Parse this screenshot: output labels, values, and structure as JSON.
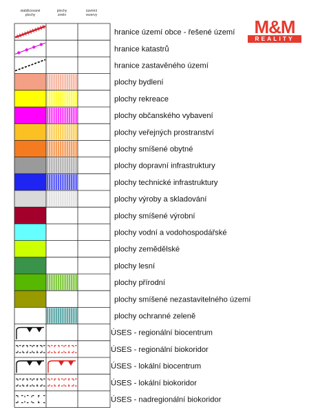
{
  "header": {
    "col1_line1": "stabilizované",
    "col1_line2": "plochy",
    "col2_line1": "plochy",
    "col2_line2": "změn",
    "col3_line1": "územní",
    "col3_line2": "rezervy"
  },
  "logo": {
    "mark": "M&M",
    "tagline": "REALITY",
    "color": "#e53a2f"
  },
  "rows": [
    {
      "label": "hranice území obce - řešené území",
      "kind": "line",
      "stable": "#d0202a",
      "change": null,
      "style": "red-hatched-line"
    },
    {
      "label": "hranice katastrů",
      "kind": "line",
      "stable": "#e020e0",
      "change": null,
      "style": "magenta-dot-line"
    },
    {
      "label": "hranice zastavěného území",
      "kind": "line",
      "stable": "#111111",
      "change": null,
      "style": "black-dashed-line"
    },
    {
      "label": "plochy bydlení",
      "kind": "fill",
      "stable": "#f3a086",
      "change": "#f3a086"
    },
    {
      "label": "plochy rekreace",
      "kind": "fill",
      "stable": "#ffff00",
      "change": "#ffff00"
    },
    {
      "label": "plochy občanského vybavení",
      "kind": "fill",
      "stable": "#ff00ff",
      "change": "#ff00ff"
    },
    {
      "label": "plochy veřejných prostranství",
      "kind": "fill",
      "stable": "#fbc022",
      "change": "#fbc022"
    },
    {
      "label": "plochy smíšené obytné",
      "kind": "fill",
      "stable": "#f47b20",
      "change": "#f47b20"
    },
    {
      "label": "plochy dopravní infrastruktury",
      "kind": "fill",
      "stable": "#9a9a9a",
      "change": "#9a9a9a"
    },
    {
      "label": "plochy technické infrastruktury",
      "kind": "fill",
      "stable": "#1f24f2",
      "change": "#1f24f2"
    },
    {
      "label": "plochy výroby a skladování",
      "kind": "fill",
      "stable": "#d9d9d9",
      "change": "#d9d9d9"
    },
    {
      "label": "plochy smíšené výrobní",
      "kind": "fill",
      "stable": "#a3002c",
      "change": null
    },
    {
      "label": "plochy vodní a vodohospodářské",
      "kind": "fill",
      "stable": "#66ffff",
      "change": null
    },
    {
      "label": "plochy zemědělské",
      "kind": "fill",
      "stable": "#ccff00",
      "change": null
    },
    {
      "label": "plochy lesní",
      "kind": "fill",
      "stable": "#3a934b",
      "change": null
    },
    {
      "label": "plochy přírodní",
      "kind": "fill",
      "stable": "#56b800",
      "change": "#56b800"
    },
    {
      "label": "plochy smíšené nezastavitelného území",
      "kind": "fill",
      "stable": "#999900",
      "change": null
    },
    {
      "label": "plochy ochranné zeleně",
      "kind": "fill",
      "stable": null,
      "change": "#2c8c8c"
    },
    {
      "label": "ÚSES - regionální biocentrum",
      "kind": "symbol",
      "stable": "#111111",
      "change": null,
      "style": "biocentrum"
    },
    {
      "label": "ÚSES - regionální biokoridor",
      "kind": "symbol",
      "stable": "#111111",
      "change": "#e02020",
      "style": "biokoridor"
    },
    {
      "label": "ÚSES - lokální biocentrum",
      "kind": "symbol",
      "stable": "#111111",
      "change": "#e02020",
      "style": "biocentrum"
    },
    {
      "label": "ÚSES - lokální biokoridor",
      "kind": "symbol",
      "stable": "#111111",
      "change": "#e02020",
      "style": "biokoridor"
    },
    {
      "label": "ÚSES - nadregionální biokoridor",
      "kind": "symbol",
      "stable": "#111111",
      "change": null,
      "style": "biokoridor-sparse"
    }
  ]
}
